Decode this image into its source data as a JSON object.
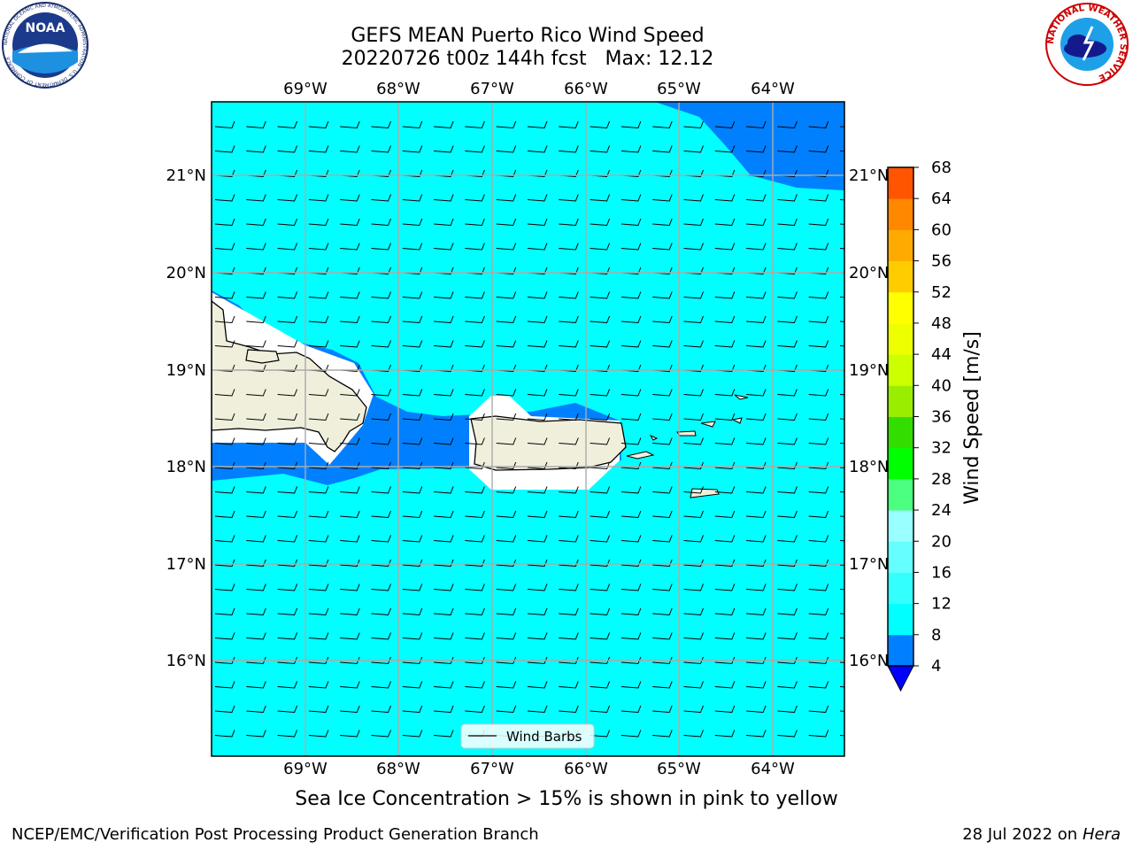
{
  "header": {
    "title_line1": "GEFS MEAN Puerto Rico Wind Speed",
    "title_line2": "20220726 t00z 144h fcst   Max: 12.12"
  },
  "logos": {
    "left": {
      "icon": "noaa-logo-icon",
      "text": "NOAA",
      "ring_text": "NATIONAL OCEANIC AND ATMOSPHERIC ADMINISTRATION · U.S. DEPARTMENT OF COMMERCE"
    },
    "right": {
      "icon": "nws-logo-icon",
      "ring_text": "NATIONAL WEATHER SERVICE"
    }
  },
  "map": {
    "lon_labels": [
      "69°W",
      "68°W",
      "67°W",
      "66°W",
      "65°W",
      "64°W"
    ],
    "lat_labels": [
      "21°N",
      "20°N",
      "19°N",
      "18°N",
      "17°N",
      "16°N"
    ],
    "legend_label": "Wind Barbs",
    "colors": {
      "ocean_fill": "#00ffff",
      "band_fill": "#0080ff",
      "land_fill": "#f0efdc",
      "deep_blue": "#0000ff"
    }
  },
  "colorbar": {
    "label": "Wind Speed [m/s]",
    "ticks": [
      "4",
      "8",
      "12",
      "16",
      "20",
      "24",
      "28",
      "32",
      "36",
      "40",
      "44",
      "48",
      "52",
      "56",
      "60",
      "64",
      "68"
    ],
    "colors": [
      "#0080ff",
      "#00ffff",
      "#33ffff",
      "#66ffff",
      "#99ffff",
      "#4cff80",
      "#00ff00",
      "#33dd00",
      "#99ee00",
      "#ccff00",
      "#eeff00",
      "#ffff00",
      "#ffcc00",
      "#ffaa00",
      "#ff8800",
      "#ff5500",
      "#ff2200",
      "#ff0000"
    ],
    "extend_color": "#0000ff"
  },
  "caption": "Sea Ice Concentration > 15% is shown in pink to yellow",
  "footer": {
    "left": "NCEP/EMC/Verification Post Processing Product Generation Branch",
    "right_date": "28 Jul 2022 on ",
    "right_host": "Hera"
  }
}
